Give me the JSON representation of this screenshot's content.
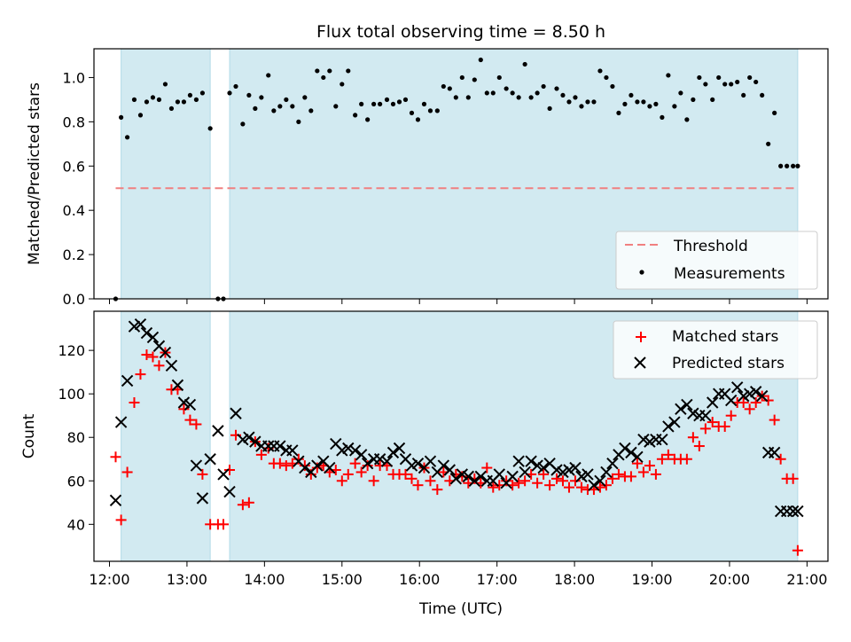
{
  "figure": {
    "title": "Flux total observing time = 8.50 h"
  },
  "colors": {
    "band": "#add8e6",
    "threshold": "#f08080",
    "matched": "#ff0000",
    "predicted": "#000000",
    "measurement": "#000000"
  },
  "chart_data": [
    {
      "type": "scatter",
      "ylabel": "Matched/Predicted stars",
      "xlim": [
        11.8,
        21.27
      ],
      "ylim": [
        0,
        1.13
      ],
      "yticks": [
        "0.0",
        "0.2",
        "0.4",
        "0.6",
        "0.8",
        "1.0"
      ],
      "grid": false,
      "legend": {
        "position": "bottom-right",
        "entries": [
          "Threshold",
          "Measurements"
        ]
      },
      "threshold": 0.5,
      "shaded_intervals": [
        [
          12.15,
          13.3
        ],
        [
          13.55,
          20.88
        ]
      ],
      "series": [
        {
          "name": "Measurements",
          "x": [
            12.08,
            12.15,
            12.23,
            12.32,
            12.4,
            12.48,
            12.56,
            12.64,
            12.72,
            12.8,
            12.88,
            12.96,
            13.04,
            13.12,
            13.2,
            13.3,
            13.4,
            13.47,
            13.55,
            13.63,
            13.72,
            13.8,
            13.88,
            13.96,
            14.05,
            14.12,
            14.2,
            14.28,
            14.36,
            14.44,
            14.52,
            14.6,
            14.68,
            14.76,
            14.84,
            14.92,
            15.0,
            15.08,
            15.17,
            15.25,
            15.33,
            15.41,
            15.49,
            15.58,
            15.66,
            15.74,
            15.82,
            15.9,
            15.98,
            16.06,
            16.14,
            16.23,
            16.31,
            16.39,
            16.47,
            16.55,
            16.63,
            16.71,
            16.79,
            16.87,
            16.95,
            17.03,
            17.12,
            17.2,
            17.28,
            17.36,
            17.44,
            17.52,
            17.6,
            17.68,
            17.77,
            17.85,
            17.93,
            18.01,
            18.09,
            18.17,
            18.25,
            18.33,
            18.41,
            18.49,
            18.57,
            18.65,
            18.73,
            18.81,
            18.89,
            18.97,
            19.05,
            19.13,
            19.21,
            19.29,
            19.37,
            19.45,
            19.53,
            19.61,
            19.69,
            19.78,
            19.86,
            19.94,
            20.02,
            20.1,
            20.18,
            20.26,
            20.34,
            20.42,
            20.5,
            20.58,
            20.66,
            20.74,
            20.82,
            20.88
          ],
          "y": [
            0.0,
            0.82,
            0.73,
            0.9,
            0.83,
            0.89,
            0.91,
            0.9,
            0.97,
            0.86,
            0.89,
            0.89,
            0.92,
            0.9,
            0.93,
            0.77,
            0.0,
            0.0,
            0.93,
            0.96,
            0.79,
            0.92,
            0.86,
            0.91,
            1.01,
            0.85,
            0.87,
            0.9,
            0.87,
            0.8,
            0.91,
            0.85,
            1.03,
            1.0,
            1.03,
            0.87,
            0.97,
            1.03,
            0.83,
            0.88,
            0.81,
            0.88,
            0.88,
            0.9,
            0.88,
            0.89,
            0.9,
            0.84,
            0.81,
            0.88,
            0.85,
            0.85,
            0.96,
            0.95,
            0.91,
            1.0,
            0.91,
            0.99,
            1.08,
            0.93,
            0.93,
            1.0,
            0.95,
            0.93,
            0.91,
            1.06,
            0.91,
            0.93,
            0.96,
            0.86,
            0.95,
            0.92,
            0.89,
            0.91,
            0.87,
            0.89,
            0.89,
            1.03,
            1.0,
            0.96,
            0.84,
            0.88,
            0.92,
            0.89,
            0.89,
            0.87,
            0.88,
            0.82,
            1.01,
            0.87,
            0.93,
            0.81,
            0.9,
            1.0,
            0.97,
            0.9,
            1.0,
            0.97,
            0.97,
            0.98,
            0.92,
            1.0,
            0.98,
            0.92,
            0.7,
            0.84,
            0.6,
            0.6,
            0.6,
            0.6
          ]
        }
      ]
    },
    {
      "type": "scatter",
      "xlabel": "Time (UTC)",
      "ylabel": "Count",
      "xlim": [
        11.8,
        21.27
      ],
      "ylim": [
        23,
        138
      ],
      "xticks": [
        "12:00",
        "13:00",
        "14:00",
        "15:00",
        "16:00",
        "17:00",
        "18:00",
        "19:00",
        "20:00",
        "21:00"
      ],
      "yticks": [
        "40",
        "60",
        "80",
        "100",
        "120"
      ],
      "grid": false,
      "legend": {
        "position": "top-right",
        "entries": [
          "Matched stars",
          "Predicted stars"
        ]
      },
      "shaded_intervals": [
        [
          12.15,
          13.3
        ],
        [
          13.55,
          20.88
        ]
      ],
      "series": [
        {
          "name": "Matched stars",
          "x": [
            12.08,
            12.15,
            12.23,
            12.32,
            12.4,
            12.48,
            12.56,
            12.64,
            12.72,
            12.8,
            12.88,
            12.96,
            13.04,
            13.12,
            13.2,
            13.3,
            13.4,
            13.47,
            13.55,
            13.63,
            13.72,
            13.8,
            13.88,
            13.96,
            14.05,
            14.12,
            14.2,
            14.28,
            14.36,
            14.44,
            14.52,
            14.6,
            14.68,
            14.76,
            14.84,
            14.92,
            15.0,
            15.08,
            15.17,
            15.25,
            15.33,
            15.41,
            15.49,
            15.58,
            15.66,
            15.74,
            15.82,
            15.9,
            15.98,
            16.06,
            16.14,
            16.23,
            16.31,
            16.39,
            16.47,
            16.55,
            16.63,
            16.71,
            16.79,
            16.87,
            16.95,
            17.03,
            17.12,
            17.2,
            17.28,
            17.36,
            17.44,
            17.52,
            17.6,
            17.68,
            17.77,
            17.85,
            17.93,
            18.01,
            18.09,
            18.17,
            18.25,
            18.33,
            18.41,
            18.49,
            18.57,
            18.65,
            18.73,
            18.81,
            18.89,
            18.97,
            19.05,
            19.13,
            19.21,
            19.29,
            19.37,
            19.45,
            19.53,
            19.61,
            19.69,
            19.78,
            19.86,
            19.94,
            20.02,
            20.1,
            20.18,
            20.26,
            20.34,
            20.42,
            20.5,
            20.58,
            20.66,
            20.74,
            20.82,
            20.88
          ],
          "y": [
            71,
            42,
            64,
            96,
            109,
            118,
            117,
            113,
            119,
            102,
            102,
            93,
            88,
            86,
            63,
            40,
            40,
            40,
            65,
            81,
            49,
            50,
            78,
            72,
            75,
            68,
            68,
            67,
            68,
            70,
            67,
            63,
            66,
            67,
            64,
            65,
            60,
            63,
            68,
            64,
            67,
            60,
            67,
            67,
            63,
            63,
            63,
            61,
            58,
            66,
            60,
            56,
            64,
            60,
            63,
            62,
            59,
            61,
            59,
            66,
            57,
            58,
            60,
            58,
            59,
            60,
            63,
            59,
            63,
            58,
            61,
            60,
            57,
            60,
            57,
            56,
            56,
            57,
            58,
            61,
            63,
            62,
            62,
            68,
            64,
            67,
            63,
            70,
            72,
            70,
            70,
            70,
            80,
            76,
            84,
            87,
            85,
            85,
            90,
            96,
            96,
            93,
            96,
            99,
            97,
            88,
            70,
            61,
            61,
            28
          ],
          "x_override": null
        },
        {
          "name": "Predicted stars",
          "x": [
            12.08,
            12.15,
            12.23,
            12.32,
            12.4,
            12.48,
            12.56,
            12.64,
            12.72,
            12.8,
            12.88,
            12.96,
            13.04,
            13.12,
            13.2,
            13.3,
            13.4,
            13.47,
            13.55,
            13.63,
            13.72,
            13.8,
            13.88,
            13.96,
            14.05,
            14.12,
            14.2,
            14.28,
            14.36,
            14.44,
            14.52,
            14.6,
            14.68,
            14.76,
            14.84,
            14.92,
            15.0,
            15.08,
            15.17,
            15.25,
            15.33,
            15.41,
            15.49,
            15.58,
            15.66,
            15.74,
            15.82,
            15.9,
            15.98,
            16.06,
            16.14,
            16.23,
            16.31,
            16.39,
            16.47,
            16.55,
            16.63,
            16.71,
            16.79,
            16.87,
            16.95,
            17.03,
            17.12,
            17.2,
            17.28,
            17.36,
            17.44,
            17.52,
            17.6,
            17.68,
            17.77,
            17.85,
            17.93,
            18.01,
            18.09,
            18.17,
            18.25,
            18.33,
            18.41,
            18.49,
            18.57,
            18.65,
            18.73,
            18.81,
            18.89,
            18.97,
            19.05,
            19.13,
            19.21,
            19.29,
            19.37,
            19.45,
            19.53,
            19.61,
            19.69,
            19.78,
            19.86,
            19.94,
            20.02,
            20.1,
            20.18,
            20.26,
            20.34,
            20.42,
            20.5,
            20.58,
            20.66,
            20.74,
            20.82,
            20.88
          ],
          "y": [
            51,
            87,
            106,
            131,
            132,
            128,
            126,
            122,
            119,
            113,
            104,
            96,
            95,
            67,
            52,
            70,
            83,
            63,
            55,
            91,
            79,
            80,
            78,
            76,
            76,
            76,
            76,
            74,
            74,
            69,
            66,
            64,
            67,
            69,
            66,
            77,
            74,
            75,
            74,
            72,
            68,
            70,
            70,
            69,
            73,
            75,
            70,
            67,
            68,
            66,
            69,
            64,
            67,
            65,
            61,
            63,
            62,
            60,
            62,
            60,
            60,
            63,
            59,
            62,
            69,
            64,
            69,
            67,
            66,
            68,
            65,
            64,
            65,
            66,
            62,
            63,
            58,
            60,
            64,
            68,
            72,
            75,
            73,
            71,
            79,
            78,
            79,
            79,
            85,
            87,
            93,
            95,
            91,
            90,
            90,
            96,
            100,
            100,
            97,
            103,
            99,
            100,
            101,
            99,
            73,
            73,
            46,
            46,
            46,
            46
          ]
        }
      ]
    }
  ]
}
